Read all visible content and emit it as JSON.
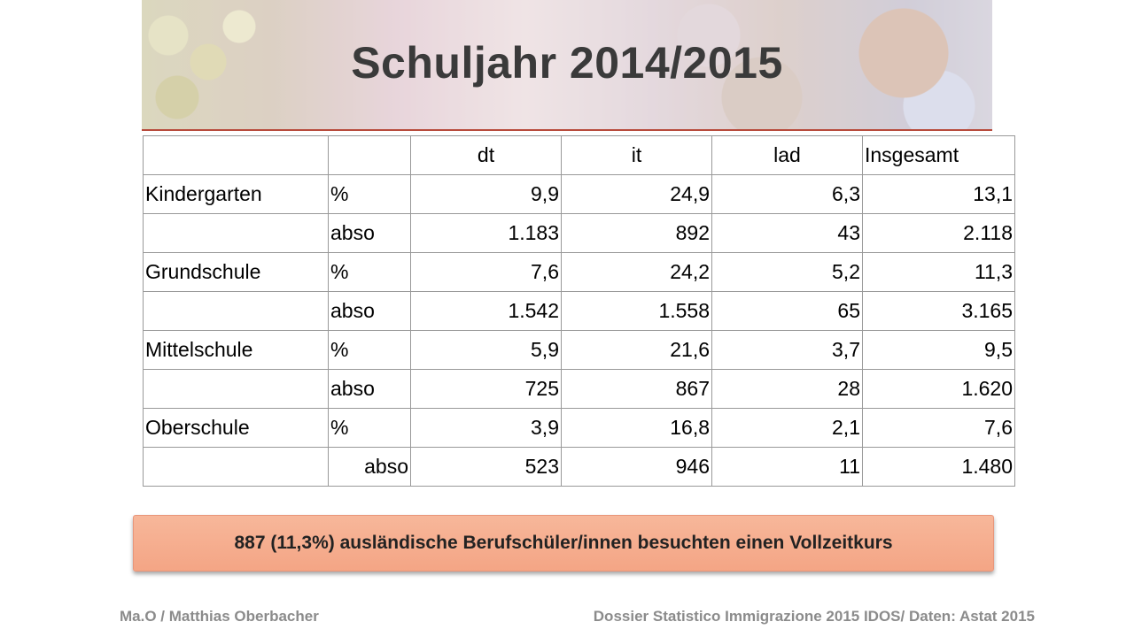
{
  "title": "Schuljahr 2014/2015",
  "table": {
    "headers": [
      "",
      "",
      "dt",
      "it",
      "lad",
      "Insgesamt"
    ],
    "rows": [
      [
        "Kindergarten",
        "%",
        "9,9",
        "24,9",
        "6,3",
        "13,1"
      ],
      [
        "",
        "abso",
        "1.183",
        "892",
        "43",
        "2.118"
      ],
      [
        "Grundschule",
        "%",
        "7,6",
        "24,2",
        "5,2",
        "11,3"
      ],
      [
        "",
        "abso",
        "1.542",
        "1.558",
        "65",
        "3.165"
      ],
      [
        "Mittelschule",
        "%",
        "5,9",
        "21,6",
        "3,7",
        "9,5"
      ],
      [
        "",
        "abso",
        "725",
        "867",
        "28",
        "1.620"
      ],
      [
        "Oberschule",
        "%",
        "3,9",
        "16,8",
        "2,1",
        "7,6"
      ],
      [
        "",
        "abso",
        "523",
        "946",
        "11",
        "1.480"
      ]
    ]
  },
  "note": "887 (11,3%) ausländische Berufschüler/innen besuchten einen Vollzeitkurs",
  "footer": {
    "left": "Ma.O / Matthias Oberbacher",
    "right": "Dossier Statistico  Immigrazione 2015 IDOS/ Daten: Astat 2015"
  },
  "colors": {
    "note_background": "#f4a585",
    "title_text": "#3a3a3a",
    "footer_text": "#8b8b8b",
    "banner_stripe": "#b84a3b"
  }
}
